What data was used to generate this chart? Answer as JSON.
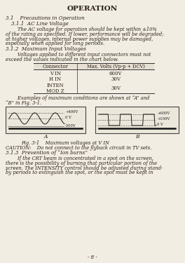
{
  "background_color": "#f2ede3",
  "title": "OPERATION",
  "title_fontsize": 7.5,
  "body_fontsize": 5.5,
  "small_fontsize": 5.0,
  "page_number": "- 8 -",
  "table_headers": [
    "Connector",
    "Max. Volts (Vp-p + DCV)"
  ],
  "table_rows": [
    [
      "V IN",
      "600V"
    ],
    [
      "H IN",
      "30V"
    ],
    [
      "INTEN",
      ""
    ],
    [
      "MOD Z",
      "30V"
    ]
  ],
  "labels_a": [
    "+400V",
    "0 V",
    "-300V"
  ],
  "labels_b": [
    "+600V",
    "+100V",
    "0 V"
  ],
  "fig_caption": "Fig. 3-1    Maximum voltages at V IN",
  "caution": "CAUTION:    Do not connect to the flyback circuit in TV sets.",
  "text_color": "#2a2015"
}
